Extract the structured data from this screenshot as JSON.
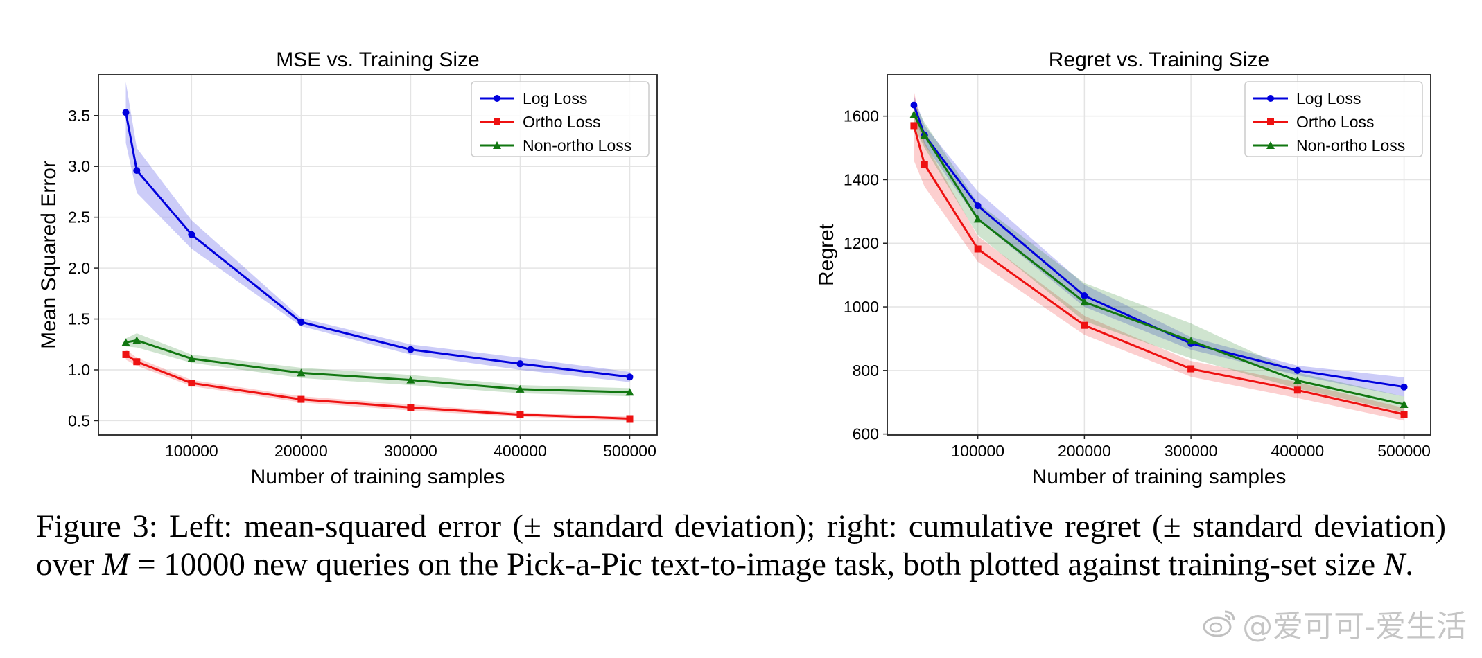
{
  "figure_caption": {
    "label": "Figure 3:",
    "text_a": "Left: mean-squared error (± standard deviation); right: cumulative regret (± standard deviation) over",
    "math_M": "M",
    "text_eq": " = 10000 new queries on the Pick-a-Pic text-to-image task, both plotted against training-set size ",
    "math_N": "N",
    "text_end": "."
  },
  "watermark": {
    "text": "@爱可可-爱生活"
  },
  "chart_data": [
    {
      "type": "line",
      "title": "MSE vs. Training Size",
      "xlabel": "Number of training samples",
      "ylabel": "Mean Squared Error",
      "xlim": [
        15000,
        525000
      ],
      "ylim": [
        0.36,
        3.9
      ],
      "xticks": [
        100000,
        200000,
        300000,
        400000,
        500000
      ],
      "xtick_labels": [
        "100000",
        "200000",
        "300000",
        "400000",
        "500000"
      ],
      "yticks": [
        0.5,
        1.0,
        1.5,
        2.0,
        2.5,
        3.0,
        3.5
      ],
      "ytick_labels": [
        "0.5",
        "1.0",
        "1.5",
        "2.0",
        "2.5",
        "3.0",
        "3.5"
      ],
      "grid": true,
      "legend": "top-right",
      "x": [
        40000,
        50000,
        100000,
        200000,
        300000,
        400000,
        500000
      ],
      "series": [
        {
          "name": "Log Loss",
          "color": "#0000dd",
          "marker": "circle",
          "values": [
            3.53,
            2.96,
            2.33,
            1.47,
            1.2,
            1.06,
            0.93
          ],
          "std": [
            0.3,
            0.22,
            0.14,
            0.04,
            0.05,
            0.06,
            0.05
          ]
        },
        {
          "name": "Ortho Loss",
          "color": "#ee1111",
          "marker": "square",
          "values": [
            1.15,
            1.08,
            0.87,
            0.71,
            0.63,
            0.56,
            0.52
          ],
          "std": [
            0.05,
            0.04,
            0.03,
            0.03,
            0.03,
            0.02,
            0.02
          ]
        },
        {
          "name": "Non-ortho Loss",
          "color": "#117711",
          "marker": "triangle",
          "values": [
            1.27,
            1.29,
            1.11,
            0.97,
            0.9,
            0.81,
            0.78
          ],
          "std": [
            0.04,
            0.07,
            0.04,
            0.05,
            0.05,
            0.04,
            0.04
          ]
        }
      ]
    },
    {
      "type": "line",
      "title": "Regret vs. Training Size",
      "xlabel": "Number of training samples",
      "ylabel": "Regret",
      "xlim": [
        15000,
        525000
      ],
      "ylim": [
        597,
        1730
      ],
      "xticks": [
        100000,
        200000,
        300000,
        400000,
        500000
      ],
      "xtick_labels": [
        "100000",
        "200000",
        "300000",
        "400000",
        "500000"
      ],
      "yticks": [
        600,
        800,
        1000,
        1200,
        1400,
        1600
      ],
      "ytick_labels": [
        "600",
        "800",
        "1000",
        "1200",
        "1400",
        "1600"
      ],
      "grid": true,
      "legend": "top-right",
      "x": [
        40000,
        50000,
        100000,
        200000,
        300000,
        400000,
        500000
      ],
      "series": [
        {
          "name": "Log Loss",
          "color": "#0000dd",
          "marker": "circle",
          "values": [
            1635,
            1540,
            1318,
            1035,
            885,
            800,
            748
          ],
          "std": [
            30,
            30,
            45,
            35,
            20,
            15,
            30
          ]
        },
        {
          "name": "Ortho Loss",
          "color": "#ee1111",
          "marker": "square",
          "values": [
            1570,
            1448,
            1182,
            942,
            805,
            738,
            662
          ],
          "std": [
            110,
            70,
            40,
            30,
            25,
            25,
            20
          ]
        },
        {
          "name": "Non-ortho Loss",
          "color": "#117711",
          "marker": "triangle",
          "values": [
            1605,
            1540,
            1276,
            1015,
            893,
            768,
            693
          ],
          "std": [
            40,
            40,
            50,
            60,
            55,
            25,
            25
          ]
        }
      ]
    }
  ]
}
